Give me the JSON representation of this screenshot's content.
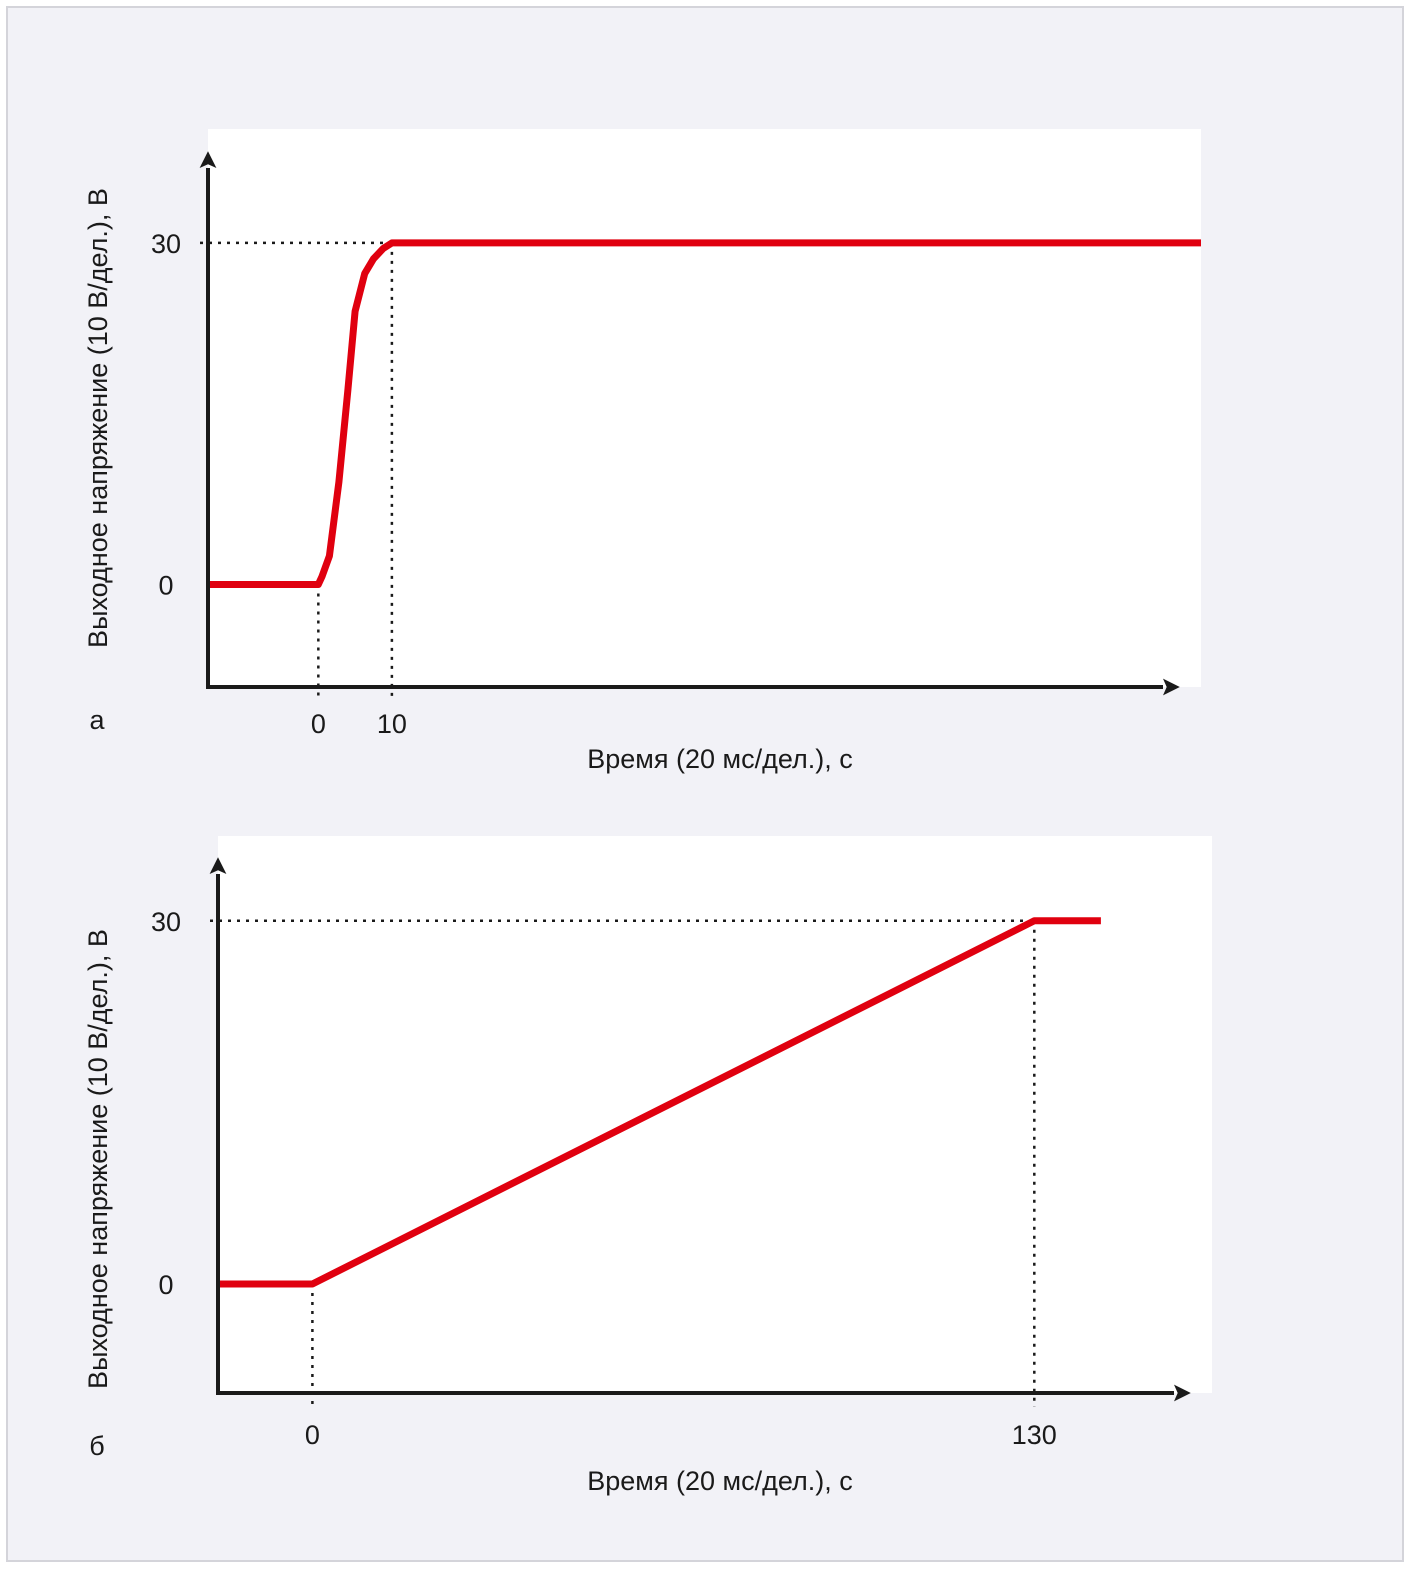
{
  "colors": {
    "series": "#e0000f",
    "axis": "#1a1a1a",
    "background": "#f2f2f7",
    "plot_area": "#ffffff"
  },
  "chart_data": [
    {
      "type": "line",
      "panel_label": "а",
      "xlabel": "Время (20 мс/дел.), с",
      "ylabel": "Выходное напряжение (10 В/дел.), В",
      "xlim": [
        -15,
        120
      ],
      "ylim": [
        -9,
        40
      ],
      "x_ticks": [
        0,
        10
      ],
      "x_tick_labels": [
        "0",
        "10"
      ],
      "y_ticks": [
        0,
        30
      ],
      "y_tick_labels": [
        "0",
        "30"
      ],
      "grid": false,
      "reference_lines": {
        "x": [
          0,
          10
        ],
        "y": [
          30
        ]
      },
      "series": [
        {
          "x": [
            -15,
            0,
            0.5,
            1.5,
            2.8,
            4.0,
            5.0,
            6.3,
            7.5,
            8.8,
            10,
            120
          ],
          "y": [
            0,
            0,
            0.7,
            2.5,
            9,
            17,
            24,
            27.3,
            28.6,
            29.5,
            30,
            30
          ]
        }
      ]
    },
    {
      "type": "line",
      "panel_label": "б",
      "xlabel": "Время (20 мс/дел.), с",
      "ylabel": "Выходное напряжение (10 В/дел.), В",
      "xlim": [
        -17,
        162
      ],
      "ylim": [
        -9,
        37
      ],
      "x_ticks": [
        0,
        130
      ],
      "x_tick_labels": [
        "0",
        "130"
      ],
      "y_ticks": [
        0,
        30
      ],
      "y_tick_labels": [
        "0",
        "30"
      ],
      "grid": false,
      "reference_lines": {
        "x": [
          0,
          130
        ],
        "y": [
          30
        ]
      },
      "series": [
        {
          "x": [
            -17,
            0,
            130,
            142
          ],
          "y": [
            0,
            0,
            30,
            30
          ]
        }
      ]
    }
  ]
}
